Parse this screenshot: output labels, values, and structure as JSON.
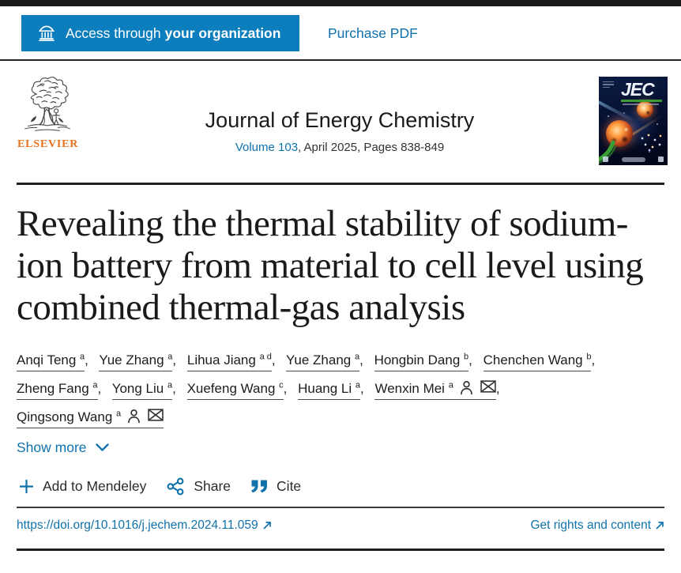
{
  "top_bar": {
    "access_label_regular": "Access through",
    "access_label_bold": "your organization",
    "purchase_pdf_label": "Purchase PDF"
  },
  "journal_header": {
    "publisher_wordmark": "ELSEVIER",
    "journal_title": "Journal of Energy Chemistry",
    "volume_link": "Volume 103",
    "issue_rest": ", April 2025, Pages 838-849",
    "cover_title": "JEC"
  },
  "article": {
    "title_lines": [
      "Revealing the thermal stability of sodium-",
      "ion battery from material to cell level using",
      "combined thermal-gas analysis"
    ],
    "author_lines": [
      [
        {
          "name": "Anqi Teng",
          "sup": "a",
          "icons": false,
          "comma": true
        },
        {
          "name": "Yue Zhang",
          "sup": "a",
          "icons": false,
          "comma": true
        },
        {
          "name": "Lihua Jiang",
          "sup": "a d",
          "icons": false,
          "comma": true
        },
        {
          "name": "Yue Zhang",
          "sup": "a",
          "icons": false,
          "comma": true
        },
        {
          "name": "Hongbin Dang",
          "sup": "b",
          "icons": false,
          "comma": true
        },
        {
          "name": "Chenchen Wang",
          "sup": "b",
          "icons": false,
          "comma": true
        }
      ],
      [
        {
          "name": "Zheng Fang",
          "sup": "a",
          "icons": false,
          "comma": true
        },
        {
          "name": "Yong Liu",
          "sup": "a",
          "icons": false,
          "comma": true
        },
        {
          "name": "Xuefeng Wang",
          "sup": "c",
          "icons": false,
          "comma": true
        },
        {
          "name": "Huang Li",
          "sup": "a",
          "icons": false,
          "comma": true
        },
        {
          "name": "Wenxin Mei",
          "sup": "a",
          "icons": true,
          "comma": true
        }
      ],
      [
        {
          "name": "Qingsong Wang",
          "sup": "a",
          "icons": true,
          "comma": false
        }
      ]
    ],
    "show_more_label": "Show more",
    "actions": {
      "mendeley_label": "Add to Mendeley",
      "share_label": "Share",
      "cite_label": "Cite"
    },
    "doi_link": "https://doi.org/10.1016/j.jechem.2024.11.059",
    "rights_link": "Get rights and content"
  },
  "colors": {
    "accent_blue_button": "#0c7dbd",
    "link_blue": "#1072ab",
    "elsevier_orange": "#e9711c",
    "top_bar_black": "#1b1b1b"
  }
}
